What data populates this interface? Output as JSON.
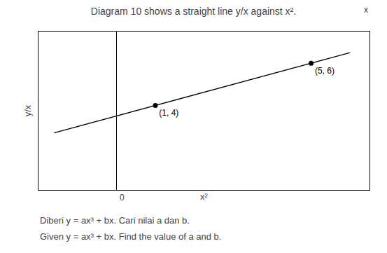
{
  "chart_data": {
    "type": "line",
    "title": "Diagram 10 shows a straight line y/x against x².",
    "x_label": "x²",
    "y_label": "y/x",
    "series": [
      {
        "type": "line",
        "color": "#000000",
        "x": [
          -1.6,
          6.0
        ],
        "values": [
          2.7,
          6.5
        ]
      },
      {
        "type": "scatter",
        "marker": "circle",
        "color": "#000000",
        "x": [
          1,
          5
        ],
        "values": [
          4,
          6
        ],
        "data_labels": true,
        "value_labels": [
          "(1, 4)",
          "(5, 6)"
        ]
      }
    ],
    "xlim": [
      -2.0,
      6.5
    ],
    "ylim": [
      0,
      7.5
    ],
    "tick_labels": false,
    "grid": false,
    "annotations": [
      {
        "text": "0",
        "x": 0,
        "y": 0
      },
      {
        "text": "x"
      }
    ],
    "footnotes": [
      "Diberi y = ax³ + bx. Cari nilai a dan b.",
      "Given y = ax³ + bx. Find the value of a and b."
    ]
  }
}
